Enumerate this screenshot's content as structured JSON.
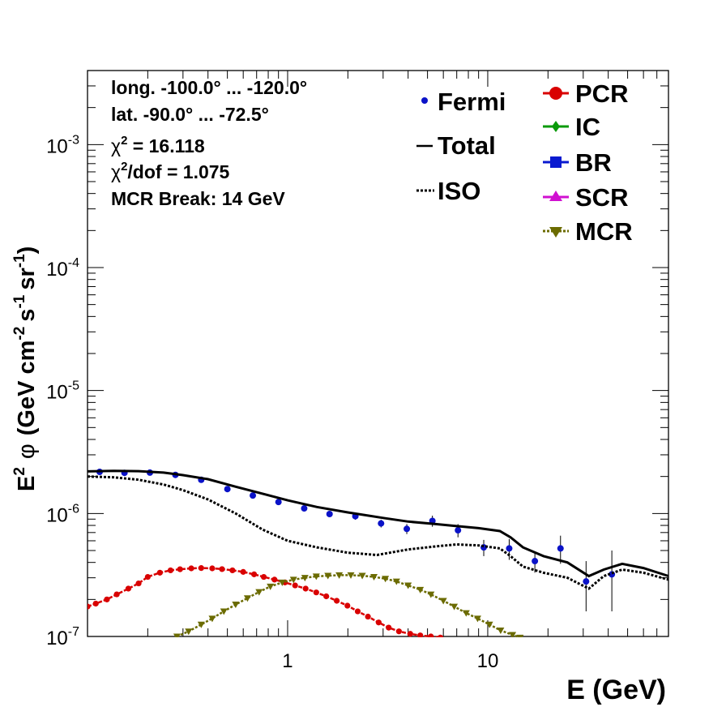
{
  "chart_data": {
    "type": "scatter",
    "title": "",
    "xlabel": "E (GeV)",
    "ylabel_parts": {
      "e": "E",
      "e_exp": "2",
      "phi": "φ",
      "unit_open": "(GeV cm",
      "cm_exp": "-2",
      "s": "s",
      "s_exp": "-1",
      "sr": "sr",
      "sr_exp": "-1",
      "close": ")"
    },
    "xscale": "log",
    "yscale": "log",
    "xlim": [
      0.1,
      80
    ],
    "ylim": [
      1e-07,
      0.004
    ],
    "x_ticks": [
      {
        "value": 1,
        "label": "1"
      },
      {
        "value": 10,
        "label": "10"
      }
    ],
    "y_ticks": [
      {
        "value": 1e-07,
        "base": "10",
        "exp": "-7"
      },
      {
        "value": 1e-06,
        "base": "10",
        "exp": "-6"
      },
      {
        "value": 1e-05,
        "base": "10",
        "exp": "-5"
      },
      {
        "value": 0.0001,
        "base": "10",
        "exp": "-4"
      },
      {
        "value": 0.001,
        "base": "10",
        "exp": "-3"
      }
    ],
    "info": {
      "longitude": "long. -100.0° ... -120.0°",
      "latitude": "lat. -90.0° ... -72.5°",
      "chi2_symbol": "χ",
      "chi2_exp": "2",
      "chi2_value": " = 16.118",
      "chi2dof_value": "/dof = 1.075",
      "mcr_break": "MCR Break: 14 GeV"
    },
    "legend_left": [
      {
        "label": "Fermi",
        "color": "#0a12c8",
        "style": "marker"
      },
      {
        "label": "Total",
        "color": "#000000",
        "style": "solid"
      },
      {
        "label": "ISO",
        "color": "#000000",
        "style": "dotted"
      }
    ],
    "legend_right": [
      {
        "label": "PCR",
        "color": "#d90000",
        "marker": "circle"
      },
      {
        "label": "IC",
        "color": "#0a9a0a",
        "marker": "diamond"
      },
      {
        "label": "BR",
        "color": "#0a1ad0",
        "marker": "square"
      },
      {
        "label": "SCR",
        "color": "#d010d0",
        "marker": "triangle-up"
      },
      {
        "label": "MCR",
        "color": "#6b6b00",
        "marker": "triangle-down"
      }
    ],
    "series": [
      {
        "name": "Fermi",
        "kind": "points",
        "color": "#0a12c8",
        "points": [
          {
            "x": 0.115,
            "y": 2.18e-06,
            "lo": 2.12e-06,
            "hi": 2.24e-06
          },
          {
            "x": 0.153,
            "y": 2.14e-06,
            "lo": 2.09e-06,
            "hi": 2.19e-06
          },
          {
            "x": 0.205,
            "y": 2.15e-06,
            "lo": 2.1e-06,
            "hi": 2.2e-06
          },
          {
            "x": 0.275,
            "y": 2.06e-06,
            "lo": 2.01e-06,
            "hi": 2.11e-06
          },
          {
            "x": 0.37,
            "y": 1.88e-06,
            "lo": 1.83e-06,
            "hi": 1.93e-06
          },
          {
            "x": 0.5,
            "y": 1.58e-06,
            "lo": 1.53e-06,
            "hi": 1.63e-06
          },
          {
            "x": 0.67,
            "y": 1.4e-06,
            "lo": 1.35e-06,
            "hi": 1.45e-06
          },
          {
            "x": 0.9,
            "y": 1.24e-06,
            "lo": 1.19e-06,
            "hi": 1.29e-06
          },
          {
            "x": 1.21,
            "y": 1.1e-06,
            "lo": 1.05e-06,
            "hi": 1.15e-06
          },
          {
            "x": 1.62,
            "y": 9.9e-07,
            "lo": 9.4e-07,
            "hi": 1.04e-06
          },
          {
            "x": 2.18,
            "y": 9.5e-07,
            "lo": 8.9e-07,
            "hi": 1.01e-06
          },
          {
            "x": 2.93,
            "y": 8.3e-07,
            "lo": 7.7e-07,
            "hi": 8.9e-07
          },
          {
            "x": 3.94,
            "y": 7.5e-07,
            "lo": 6.8e-07,
            "hi": 8.2e-07
          },
          {
            "x": 5.29,
            "y": 8.7e-07,
            "lo": 7.8e-07,
            "hi": 9.6e-07
          },
          {
            "x": 7.1,
            "y": 7.3e-07,
            "lo": 6.4e-07,
            "hi": 8.2e-07
          },
          {
            "x": 9.55,
            "y": 5.3e-07,
            "lo": 4.5e-07,
            "hi": 6.1e-07
          },
          {
            "x": 12.8,
            "y": 5.2e-07,
            "lo": 4.2e-07,
            "hi": 6.2e-07
          },
          {
            "x": 17.2,
            "y": 4.1e-07,
            "lo": 3.3e-07,
            "hi": 4.9e-07
          },
          {
            "x": 23.1,
            "y": 5.2e-07,
            "lo": 3.9e-07,
            "hi": 6.6e-07
          },
          {
            "x": 31.0,
            "y": 2.8e-07,
            "lo": 1.6e-07,
            "hi": 4.1e-07
          },
          {
            "x": 41.7,
            "y": 3.2e-07,
            "lo": 1.6e-07,
            "hi": 5e-07
          }
        ]
      },
      {
        "name": "Total",
        "kind": "line",
        "dash": "solid",
        "color": "#000000",
        "x": [
          0.1,
          0.135,
          0.18,
          0.24,
          0.3,
          0.4,
          0.55,
          0.75,
          1.0,
          1.4,
          2.0,
          3.0,
          4.0,
          5.5,
          7.0,
          9.0,
          11.5,
          13.0,
          15.0,
          19.0,
          25.0,
          32.0,
          38.0,
          47.0,
          60.0,
          80.0
        ],
        "y": [
          2.2e-06,
          2.22e-06,
          2.21e-06,
          2.15e-06,
          2.05e-06,
          1.9e-06,
          1.65e-06,
          1.45e-06,
          1.28e-06,
          1.13e-06,
          1.02e-06,
          9.2e-07,
          8.6e-07,
          8.2e-07,
          7.9e-07,
          7.6e-07,
          7.2e-07,
          6.4e-07,
          5.3e-07,
          4.5e-07,
          4e-07,
          3.1e-07,
          3.5e-07,
          3.9e-07,
          3.6e-07,
          3.1e-07
        ]
      },
      {
        "name": "ISO",
        "kind": "line",
        "dash": "dotted",
        "color": "#000000",
        "x": [
          0.1,
          0.135,
          0.18,
          0.24,
          0.3,
          0.4,
          0.55,
          0.75,
          1.0,
          1.4,
          2.0,
          2.8,
          4.0,
          5.5,
          7.0,
          9.0,
          11.5,
          13.0,
          15.0,
          19.0,
          25.0,
          32.0,
          38.0,
          47.0,
          60.0,
          80.0
        ],
        "y": [
          2e-06,
          1.97e-06,
          1.88e-06,
          1.72e-06,
          1.55e-06,
          1.3e-06,
          1e-06,
          7.4e-07,
          6e-07,
          5.3e-07,
          4.8e-07,
          4.6e-07,
          5.1e-07,
          5.4e-07,
          5.6e-07,
          5.5e-07,
          5.2e-07,
          4.5e-07,
          3.7e-07,
          3.3e-07,
          3e-07,
          2.45e-07,
          3.1e-07,
          3.5e-07,
          3.3e-07,
          2.9e-07
        ]
      },
      {
        "name": "PCR",
        "kind": "line-markers",
        "dash": "dashed",
        "marker": "circle",
        "color": "#d90000",
        "x": [
          0.1,
          0.11,
          0.125,
          0.14,
          0.16,
          0.18,
          0.2,
          0.23,
          0.26,
          0.29,
          0.33,
          0.37,
          0.42,
          0.47,
          0.53,
          0.6,
          0.68,
          0.76,
          0.86,
          0.97,
          1.09,
          1.23,
          1.39,
          1.56,
          1.76,
          1.99,
          2.24,
          2.52,
          2.85,
          3.2,
          3.6,
          4.1,
          4.6,
          5.2,
          5.8
        ],
        "y": [
          1.75e-07,
          1.85e-07,
          2e-07,
          2.2e-07,
          2.45e-07,
          2.7e-07,
          3.05e-07,
          3.3e-07,
          3.45e-07,
          3.52e-07,
          3.58e-07,
          3.6e-07,
          3.58e-07,
          3.53e-07,
          3.45e-07,
          3.35e-07,
          3.2e-07,
          3.05e-07,
          2.9e-07,
          2.75e-07,
          2.6e-07,
          2.45e-07,
          2.28e-07,
          2.12e-07,
          1.95e-07,
          1.78e-07,
          1.6e-07,
          1.45e-07,
          1.3e-07,
          1.18e-07,
          1.1e-07,
          1.05e-07,
          1.02e-07,
          1e-07,
          9.8e-08
        ]
      },
      {
        "name": "MCR",
        "kind": "line-markers",
        "dash": "dotted",
        "marker": "triangle-down",
        "color": "#6b6b00",
        "x": [
          0.28,
          0.32,
          0.37,
          0.42,
          0.48,
          0.55,
          0.63,
          0.72,
          0.82,
          0.94,
          1.07,
          1.22,
          1.39,
          1.59,
          1.81,
          2.07,
          2.36,
          2.7,
          3.08,
          3.5,
          4.0,
          4.6,
          5.2,
          6.0,
          6.8,
          7.8,
          8.9,
          10.2,
          11.6,
          13.3,
          14.5
        ],
        "y": [
          1e-07,
          1.1e-07,
          1.25e-07,
          1.4e-07,
          1.6e-07,
          1.82e-07,
          2.05e-07,
          2.3e-07,
          2.55e-07,
          2.75e-07,
          2.9e-07,
          3e-07,
          3.08e-07,
          3.12e-07,
          3.15e-07,
          3.15e-07,
          3.12e-07,
          3.05e-07,
          2.95e-07,
          2.8e-07,
          2.6e-07,
          2.4e-07,
          2.2e-07,
          1.95e-07,
          1.75e-07,
          1.55e-07,
          1.4e-07,
          1.25e-07,
          1.12e-07,
          1.03e-07,
          9.8e-08
        ]
      }
    ]
  }
}
